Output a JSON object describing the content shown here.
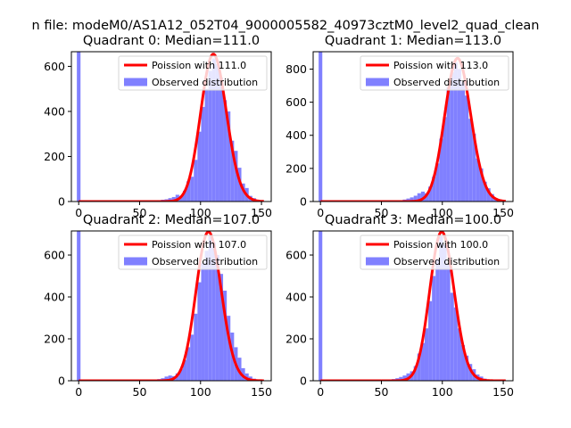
{
  "figure": {
    "suptitle": "n file: modeM0/AS1A12_052T04_9000005582_40973cztM0_level2_quad_clean"
  },
  "colors": {
    "poisson": "#ff0000",
    "observed": "#8080ff",
    "axes": "#000000"
  },
  "chart_data": [
    {
      "type": "bar",
      "title": "Quadrant 0: Median=111.0",
      "median": 111.0,
      "xlim": [
        -6,
        158
      ],
      "ylim": [
        0,
        665
      ],
      "xticks": [
        0,
        50,
        100,
        150
      ],
      "yticks": [
        0,
        200,
        400,
        600
      ],
      "bin_width": 3,
      "spike": {
        "x": 0,
        "value": 665
      },
      "observed": {
        "x": [
          57,
          60,
          63,
          66,
          69,
          72,
          75,
          78,
          81,
          84,
          87,
          90,
          93,
          96,
          99,
          102,
          105,
          108,
          111,
          114,
          117,
          120,
          123,
          126,
          129,
          132,
          135,
          138,
          141,
          144,
          147,
          150
        ],
        "values": [
          3,
          4,
          5,
          6,
          8,
          10,
          15,
          20,
          30,
          25,
          48,
          90,
          110,
          185,
          310,
          420,
          500,
          580,
          635,
          610,
          550,
          450,
          400,
          270,
          225,
          150,
          80,
          60,
          25,
          15,
          8,
          5
        ]
      },
      "legend": [
        {
          "label": "Poission with 111.0",
          "kind": "line"
        },
        {
          "label": "Observed distribution",
          "kind": "patch"
        }
      ]
    },
    {
      "type": "bar",
      "title": "Quadrant 1: Median=113.0",
      "median": 113.0,
      "xlim": [
        -6,
        158
      ],
      "ylim": [
        0,
        905
      ],
      "xticks": [
        0,
        50,
        100,
        150
      ],
      "yticks": [
        0,
        200,
        400,
        600,
        800
      ],
      "bin_width": 3,
      "spike": {
        "x": 0,
        "value": 905
      },
      "observed": {
        "x": [
          60,
          63,
          66,
          69,
          72,
          75,
          78,
          81,
          84,
          87,
          90,
          93,
          96,
          99,
          102,
          105,
          108,
          111,
          114,
          117,
          120,
          123,
          126,
          129,
          132,
          135,
          138,
          141,
          144,
          147,
          150
        ],
        "values": [
          3,
          5,
          8,
          12,
          18,
          25,
          35,
          50,
          60,
          50,
          90,
          150,
          230,
          380,
          510,
          690,
          780,
          840,
          800,
          720,
          640,
          500,
          410,
          260,
          200,
          120,
          80,
          45,
          20,
          10,
          5
        ]
      },
      "legend": [
        {
          "label": "Poission with 113.0",
          "kind": "line"
        },
        {
          "label": "Observed distribution",
          "kind": "patch"
        }
      ]
    },
    {
      "type": "bar",
      "title": "Quadrant 2: Median=107.0",
      "median": 107.0,
      "xlim": [
        -6,
        158
      ],
      "ylim": [
        0,
        715
      ],
      "xticks": [
        0,
        50,
        100,
        150
      ],
      "yticks": [
        0,
        200,
        400,
        600
      ],
      "bin_width": 3,
      "spike": {
        "x": 0,
        "value": 715
      },
      "observed": {
        "x": [
          60,
          63,
          66,
          69,
          72,
          75,
          78,
          81,
          84,
          87,
          90,
          93,
          96,
          99,
          102,
          105,
          108,
          111,
          114,
          117,
          120,
          123,
          126,
          129,
          132,
          135,
          138,
          141,
          144,
          147,
          150
        ],
        "values": [
          3,
          5,
          8,
          12,
          20,
          25,
          22,
          35,
          55,
          100,
          160,
          220,
          320,
          470,
          560,
          620,
          690,
          660,
          600,
          510,
          430,
          310,
          230,
          160,
          110,
          60,
          35,
          20,
          10,
          6,
          3
        ]
      },
      "legend": [
        {
          "label": "Poission with 107.0",
          "kind": "line"
        },
        {
          "label": "Observed distribution",
          "kind": "patch"
        }
      ]
    },
    {
      "type": "bar",
      "title": "Quadrant 3: Median=100.0",
      "median": 100.0,
      "xlim": [
        -6,
        158
      ],
      "ylim": [
        0,
        715
      ],
      "xticks": [
        0,
        50,
        100,
        150
      ],
      "yticks": [
        0,
        200,
        400,
        600
      ],
      "bin_width": 3,
      "spike": {
        "x": 0,
        "value": 715
      },
      "observed": {
        "x": [
          54,
          57,
          60,
          63,
          66,
          69,
          72,
          75,
          78,
          81,
          84,
          87,
          90,
          93,
          96,
          99,
          102,
          105,
          108,
          111,
          114,
          117,
          120,
          123,
          126,
          129,
          132,
          135,
          138,
          141,
          144
        ],
        "values": [
          3,
          5,
          8,
          12,
          18,
          25,
          35,
          45,
          70,
          130,
          180,
          250,
          380,
          500,
          580,
          690,
          650,
          560,
          420,
          350,
          250,
          170,
          120,
          80,
          55,
          30,
          20,
          10,
          6,
          4,
          2
        ]
      },
      "legend": [
        {
          "label": "Poission with 100.0",
          "kind": "line"
        },
        {
          "label": "Observed distribution",
          "kind": "patch"
        }
      ]
    }
  ]
}
